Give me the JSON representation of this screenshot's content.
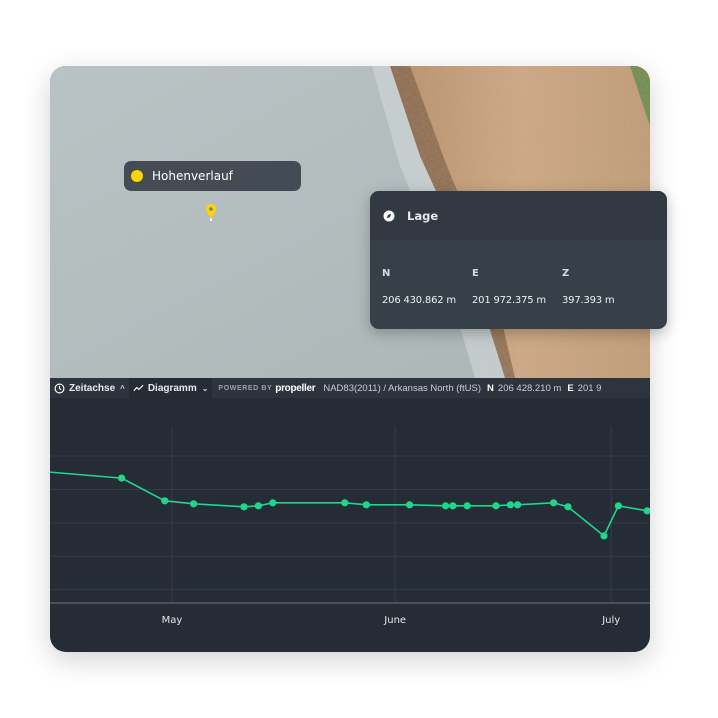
{
  "map": {
    "marker_label": "Hohenverlauf",
    "marker_color": "#ffd400",
    "marker_icon": "map-pin-icon"
  },
  "toolbar": {
    "timeline_label": "Zeitachse",
    "timeline_icon": "clock-icon",
    "chart_label": "Diagramm",
    "chart_icon": "line-chart-icon",
    "powered_by": "POWERED BY",
    "brand": "propeller",
    "crs": "NAD83(2011) / Arkansas North (ftUS)",
    "n_key": "N",
    "n_value": "206 428.210 m",
    "e_key": "E",
    "e_value": "201 9"
  },
  "popup": {
    "title": "Lage",
    "icon": "compass-icon",
    "columns": [
      {
        "key": "N",
        "value": "206 430.862 m"
      },
      {
        "key": "E",
        "value": "201 972.375 m"
      },
      {
        "key": "Z",
        "value": "397.393 m"
      }
    ]
  },
  "chart_data": {
    "type": "line",
    "title": "",
    "xlabel": "",
    "ylabel": "",
    "x_tick_labels": [
      "May",
      "June",
      "July"
    ],
    "grid": true,
    "line_color": "#1fd68a",
    "x": [
      "Apr 14",
      "Apr 24",
      "Apr 30",
      "May 4",
      "May 11",
      "May 13",
      "May 15",
      "May 25",
      "May 28",
      "Jun 3",
      "Jun 8",
      "Jun 9",
      "Jun 11",
      "Jun 15",
      "Jun 17",
      "Jun 18",
      "Jun 23",
      "Jun 25",
      "Jun 30",
      "Jul 2",
      "Jul 6"
    ],
    "y": [
      3.52,
      3.34,
      2.66,
      2.57,
      2.48,
      2.51,
      2.6,
      2.6,
      2.54,
      2.54,
      2.51,
      2.51,
      2.51,
      2.51,
      2.54,
      2.54,
      2.6,
      2.48,
      1.61,
      2.51,
      2.36
    ],
    "markers_from_index": 1,
    "ylim": [
      -0.4,
      4.9
    ]
  }
}
